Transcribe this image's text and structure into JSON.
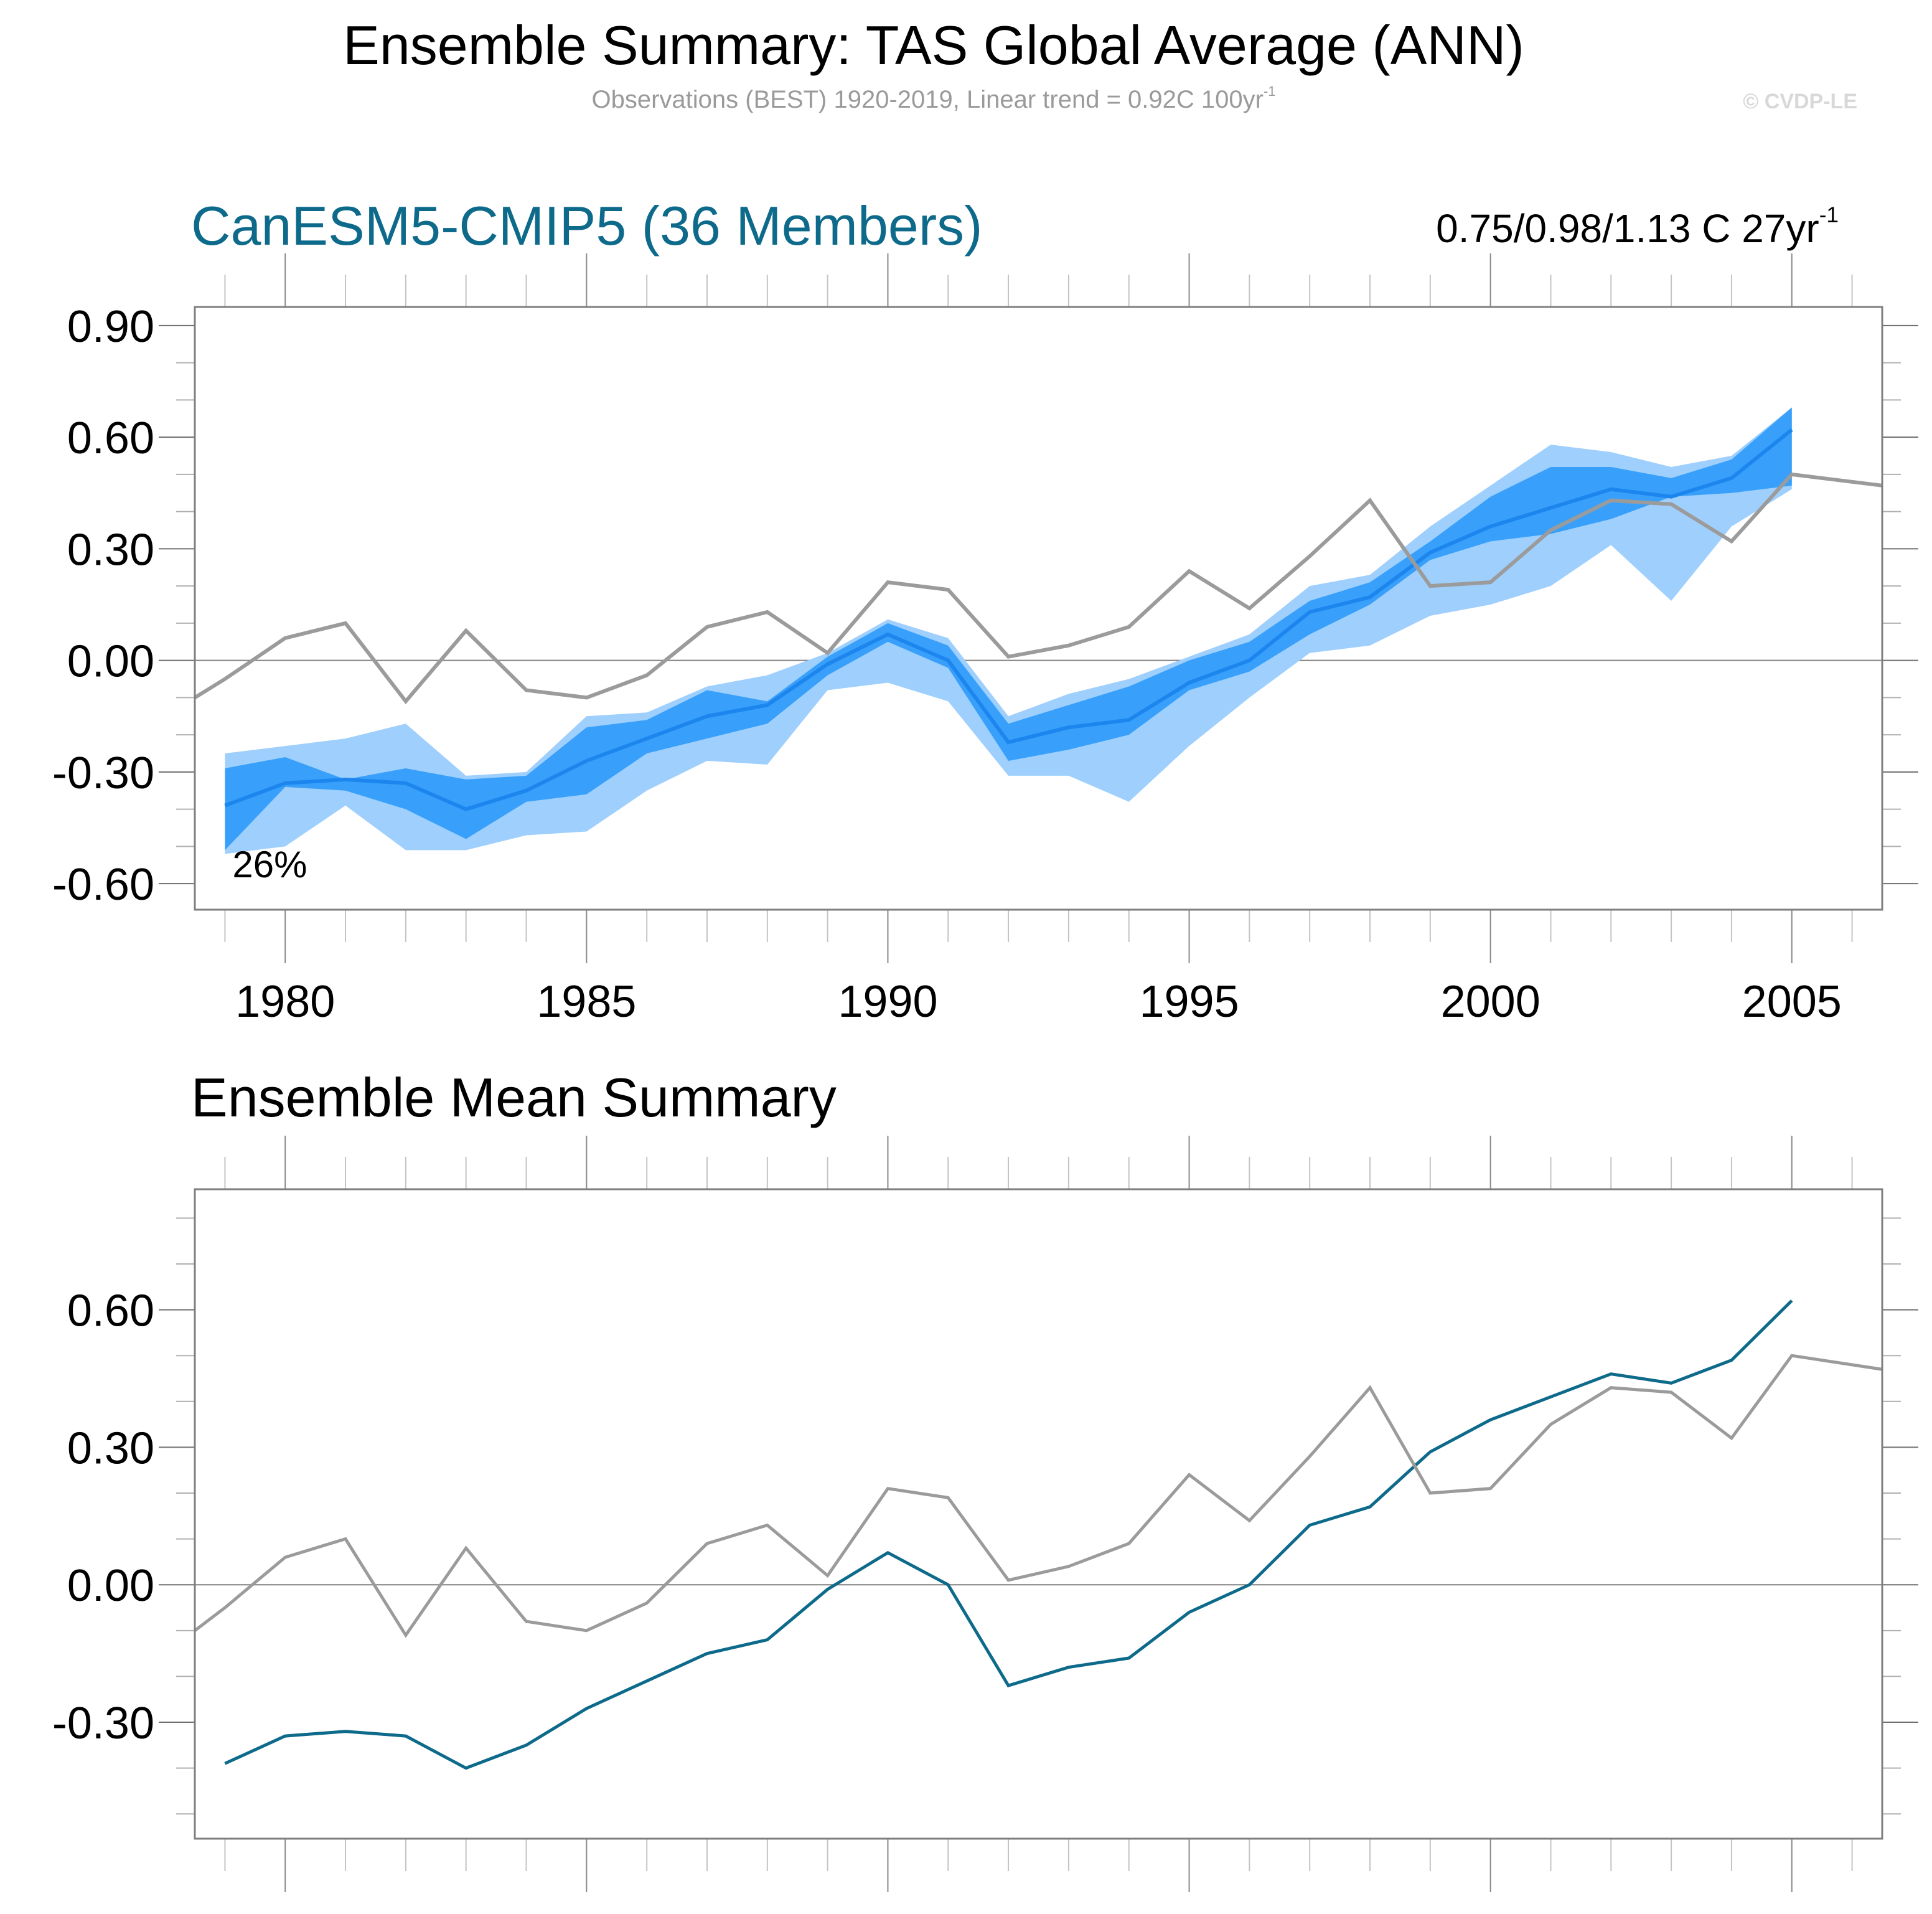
{
  "header": {
    "title": "Ensemble Summary: TAS Global Average (ANN)",
    "subtitle_main": "Observations (BEST) 1920-2019, Linear trend = 0.92C 100yr",
    "subtitle_sup": "-1",
    "copyright": "© CVDP-LE"
  },
  "panel1": {
    "title": "CanESM5-CMIP5 (36 Members)",
    "trend_main": "0.75/0.98/1.13 C 27yr",
    "trend_sup": "-1",
    "annotation": "26%"
  },
  "panel2": {
    "title": "Ensemble Mean Summary"
  },
  "colors": {
    "title_accent": "#0e6a8a",
    "observations": "#9b9b9b",
    "ensemble_mean_top": "#1c86ee",
    "ensemble_mean_bottom": "#0e6a8a",
    "band_outer": "#9fcffd",
    "band_inner": "#38a0fb",
    "axis": "#7f7f7f",
    "zero_line": "#808080"
  },
  "chart_data": [
    {
      "type": "area",
      "name": "ensemble-summary",
      "title": "CanESM5-CMIP5 (36 Members)",
      "xlabel": "",
      "ylabel": "",
      "xlim": [
        1978.5,
        2006.5
      ],
      "ylim": [
        -0.67,
        0.95
      ],
      "x_ticks": [
        1980,
        1985,
        1990,
        1995,
        2000,
        2005
      ],
      "x_tick_labels": [
        "1980",
        "1985",
        "1990",
        "1995",
        "2000",
        "2005"
      ],
      "y_ticks": [
        -0.6,
        -0.3,
        0.0,
        0.3,
        0.6,
        0.9
      ],
      "y_tick_labels": [
        "-0.60",
        "-0.30",
        "0.00",
        "0.30",
        "0.60",
        "0.90"
      ],
      "grid": false,
      "reference_line": 0.0,
      "annotation": "26%",
      "x_model": [
        1979,
        1980,
        1981,
        1982,
        1983,
        1984,
        1985,
        1986,
        1987,
        1988,
        1989,
        1990,
        1991,
        1992,
        1993,
        1994,
        1995,
        1996,
        1997,
        1998,
        1999,
        2000,
        2001,
        2002,
        2003,
        2004,
        2005
      ],
      "series": [
        {
          "name": "Ensemble max/min (outer)",
          "kind": "band",
          "upper": [
            -0.25,
            -0.23,
            -0.21,
            -0.17,
            -0.31,
            -0.3,
            -0.15,
            -0.14,
            -0.07,
            -0.04,
            0.02,
            0.11,
            0.06,
            -0.15,
            -0.09,
            -0.05,
            0.01,
            0.07,
            0.2,
            0.23,
            0.36,
            0.47,
            0.58,
            0.56,
            0.52,
            0.55,
            0.68
          ],
          "lower": [
            -0.52,
            -0.5,
            -0.39,
            -0.51,
            -0.51,
            -0.47,
            -0.46,
            -0.35,
            -0.27,
            -0.28,
            -0.08,
            -0.06,
            -0.11,
            -0.31,
            -0.31,
            -0.38,
            -0.23,
            -0.1,
            0.02,
            0.04,
            0.12,
            0.15,
            0.2,
            0.31,
            0.16,
            0.36,
            0.46
          ]
        },
        {
          "name": "Ensemble interquartile (inner)",
          "kind": "band",
          "upper": [
            -0.29,
            -0.26,
            -0.32,
            -0.29,
            -0.32,
            -0.31,
            -0.18,
            -0.16,
            -0.08,
            -0.11,
            0.01,
            0.1,
            0.04,
            -0.17,
            -0.12,
            -0.07,
            0.0,
            0.05,
            0.16,
            0.21,
            0.32,
            0.44,
            0.52,
            0.52,
            0.49,
            0.54,
            0.68
          ],
          "lower": [
            -0.51,
            -0.34,
            -0.35,
            -0.4,
            -0.48,
            -0.38,
            -0.36,
            -0.25,
            -0.21,
            -0.17,
            -0.04,
            0.05,
            -0.02,
            -0.27,
            -0.24,
            -0.2,
            -0.08,
            -0.03,
            0.07,
            0.15,
            0.27,
            0.32,
            0.34,
            0.38,
            0.44,
            0.45,
            0.47
          ]
        },
        {
          "name": "Ensemble mean",
          "kind": "line",
          "values": [
            -0.39,
            -0.33,
            -0.32,
            -0.33,
            -0.4,
            -0.35,
            -0.27,
            -0.21,
            -0.15,
            -0.12,
            -0.01,
            0.07,
            0.0,
            -0.22,
            -0.18,
            -0.16,
            -0.06,
            0.0,
            0.13,
            0.17,
            0.29,
            0.36,
            0.41,
            0.46,
            0.44,
            0.49,
            0.62
          ]
        },
        {
          "name": "Observations (BEST)",
          "kind": "line",
          "x": [
            1978.5,
            1979,
            1980,
            1981,
            1982,
            1983,
            1984,
            1985,
            1986,
            1987,
            1988,
            1989,
            1990,
            1991,
            1992,
            1993,
            1994,
            1995,
            1996,
            1997,
            1998,
            1999,
            2000,
            2001,
            2002,
            2003,
            2004,
            2005,
            2006.5
          ],
          "values": [
            -0.1,
            -0.05,
            0.06,
            0.1,
            -0.11,
            0.08,
            -0.08,
            -0.1,
            -0.04,
            0.09,
            0.13,
            0.02,
            0.21,
            0.19,
            0.01,
            0.04,
            0.09,
            0.24,
            0.14,
            0.28,
            0.43,
            0.2,
            0.21,
            0.35,
            0.43,
            0.42,
            0.32,
            0.5,
            0.47
          ]
        }
      ]
    },
    {
      "type": "line",
      "name": "ensemble-mean-summary",
      "title": "Ensemble Mean Summary",
      "xlabel": "",
      "ylabel": "",
      "xlim": [
        1978.5,
        2006.5
      ],
      "ylim": [
        -0.554,
        0.863
      ],
      "x_ticks": [
        1980,
        1985,
        1990,
        1995,
        2000,
        2005
      ],
      "x_tick_labels": [
        "1980",
        "1985",
        "1990",
        "1995",
        "2000",
        "2005"
      ],
      "y_ticks": [
        -0.3,
        0.0,
        0.3,
        0.6
      ],
      "y_tick_labels": [
        "-0.30",
        "0.00",
        "0.30",
        "0.60"
      ],
      "grid": false,
      "reference_line": 0.0,
      "series": [
        {
          "name": "CanESM5-CMIP5 ensemble mean",
          "x": [
            1979,
            1980,
            1981,
            1982,
            1983,
            1984,
            1985,
            1986,
            1987,
            1988,
            1989,
            1990,
            1991,
            1992,
            1993,
            1994,
            1995,
            1996,
            1997,
            1998,
            1999,
            2000,
            2001,
            2002,
            2003,
            2004,
            2005
          ],
          "values": [
            -0.39,
            -0.33,
            -0.32,
            -0.33,
            -0.4,
            -0.35,
            -0.27,
            -0.21,
            -0.15,
            -0.12,
            -0.01,
            0.07,
            0.0,
            -0.22,
            -0.18,
            -0.16,
            -0.06,
            0.0,
            0.13,
            0.17,
            0.29,
            0.36,
            0.41,
            0.46,
            0.44,
            0.49,
            0.62
          ]
        },
        {
          "name": "Observations (BEST)",
          "x": [
            1978.5,
            1979,
            1980,
            1981,
            1982,
            1983,
            1984,
            1985,
            1986,
            1987,
            1988,
            1989,
            1990,
            1991,
            1992,
            1993,
            1994,
            1995,
            1996,
            1997,
            1998,
            1999,
            2000,
            2001,
            2002,
            2003,
            2004,
            2005,
            2006.5
          ],
          "values": [
            -0.1,
            -0.05,
            0.06,
            0.1,
            -0.11,
            0.08,
            -0.08,
            -0.1,
            -0.04,
            0.09,
            0.13,
            0.02,
            0.21,
            0.19,
            0.01,
            0.04,
            0.09,
            0.24,
            0.14,
            0.28,
            0.43,
            0.2,
            0.21,
            0.35,
            0.43,
            0.42,
            0.32,
            0.5,
            0.47
          ]
        }
      ]
    }
  ]
}
